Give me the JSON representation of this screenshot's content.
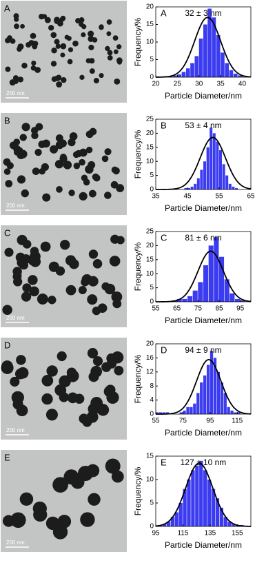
{
  "images": [
    {
      "label": "A",
      "scale": "200 nm"
    },
    {
      "label": "B",
      "scale": "200 nm"
    },
    {
      "label": "C",
      "scale": "200 nm"
    },
    {
      "label": "D",
      "scale": "200 nm"
    },
    {
      "label": "E",
      "scale": "200 nm"
    }
  ],
  "chart_data": [
    {
      "type": "histogram",
      "panel": "A",
      "annotation": "32 ± 3 nm",
      "xlabel": "Particle Diameter/nm",
      "ylabel": "Frequency/%",
      "color": "#3b3bf0",
      "bins": [
        22,
        23,
        24,
        25,
        26,
        27,
        28,
        29,
        30,
        31,
        32,
        33,
        34,
        35,
        36,
        37,
        38,
        39,
        40
      ],
      "counts": [
        0.3,
        0.3,
        0.5,
        0.8,
        1.5,
        2.5,
        4,
        6,
        11,
        15,
        19.5,
        17,
        12,
        7,
        4,
        2,
        1,
        0.5
      ],
      "fit": {
        "mean": 32,
        "sd": 3,
        "peak": 17
      },
      "xlim": [
        20,
        42
      ],
      "xticks": [
        20,
        25,
        30,
        35,
        40
      ],
      "ylim": [
        0,
        20
      ],
      "yticks": [
        0,
        5,
        10,
        15,
        20
      ]
    },
    {
      "type": "histogram",
      "panel": "B",
      "annotation": "53 ± 4 nm",
      "xlabel": "Particle Diameter/nm",
      "ylabel": "Frequency/%",
      "color": "#3b3bf0",
      "bins": [
        44,
        45,
        46,
        47,
        48,
        49,
        50,
        51,
        52,
        53,
        54,
        55,
        56,
        57,
        58,
        59,
        60,
        61
      ],
      "counts": [
        0.5,
        0.5,
        1,
        2,
        4,
        7,
        10,
        15,
        22,
        20,
        17,
        14,
        9,
        5,
        2,
        1,
        0.5
      ],
      "fit": {
        "mean": 53,
        "sd": 4,
        "peak": 18.5
      },
      "xlim": [
        35,
        65
      ],
      "xticks": [
        35,
        45,
        55,
        65
      ],
      "ylim": [
        0,
        25
      ],
      "yticks": [
        0,
        5,
        10,
        15,
        20,
        25
      ]
    },
    {
      "type": "histogram",
      "panel": "C",
      "annotation": "81 ± 6 nm",
      "xlabel": "Particle Diameter/nm",
      "ylabel": "Frequency/%",
      "color": "#3b3bf0",
      "bins": [
        62.5,
        65,
        67.5,
        70,
        72.5,
        75,
        77.5,
        80,
        82.5,
        85,
        87.5,
        90,
        92.5,
        95,
        97.5
      ],
      "counts": [
        0.5,
        1,
        1,
        2,
        4,
        7,
        13,
        20,
        23,
        16,
        8,
        3,
        1,
        0.5
      ],
      "fit": {
        "mean": 81,
        "sd": 6,
        "peak": 18
      },
      "xlim": [
        55,
        100
      ],
      "xticks": [
        55,
        65,
        75,
        85,
        95
      ],
      "ylim": [
        0,
        25
      ],
      "yticks": [
        0,
        5,
        10,
        15,
        20,
        25
      ]
    },
    {
      "type": "histogram",
      "panel": "D",
      "annotation": "94 ± 9 nm",
      "xlabel": "Particle Diameter/nm",
      "ylabel": "Frequency/%",
      "color": "#3b3bf0",
      "bins": [
        55,
        57.5,
        60,
        62.5,
        65,
        67.5,
        70,
        72.5,
        75,
        77.5,
        80,
        82.5,
        85,
        87.5,
        90,
        92.5,
        95,
        97.5,
        100,
        102.5,
        105,
        107.5,
        110,
        112.5,
        115,
        117.5
      ],
      "counts": [
        0.5,
        0.5,
        0.5,
        0.5,
        0,
        0,
        0,
        0.5,
        1,
        2,
        2,
        3,
        6,
        9,
        11,
        14,
        18,
        16,
        12,
        9,
        6,
        2,
        1,
        0.5,
        0.5
      ],
      "fit": {
        "mean": 94,
        "sd": 9,
        "peak": 15.5
      },
      "xlim": [
        55,
        125
      ],
      "xticks": [
        55,
        75,
        95,
        115
      ],
      "ylim": [
        0,
        20
      ],
      "yticks": [
        0,
        4,
        8,
        12,
        16,
        20
      ]
    },
    {
      "type": "histogram",
      "panel": "E",
      "annotation": "127 ± 10 nm",
      "xlabel": "Particle Diameter/nm",
      "ylabel": "Frequency/%",
      "color": "#3b3bf0",
      "bins": [
        97,
        100,
        103,
        106,
        109,
        112,
        115,
        118,
        121,
        124,
        127,
        130,
        133,
        136,
        139,
        142,
        145,
        148,
        151,
        154,
        157,
        160
      ],
      "counts": [
        0.3,
        0.5,
        1,
        2,
        3,
        5,
        8,
        10,
        12,
        13,
        14,
        12,
        10,
        8,
        6,
        4,
        2,
        1,
        0.5,
        0.3,
        0.3
      ],
      "fit": {
        "mean": 127,
        "sd": 10,
        "peak": 13.5
      },
      "xlim": [
        95,
        165
      ],
      "xticks": [
        95,
        115,
        135,
        155
      ],
      "ylim": [
        0,
        15
      ],
      "yticks": [
        0,
        5,
        10,
        15
      ]
    }
  ]
}
